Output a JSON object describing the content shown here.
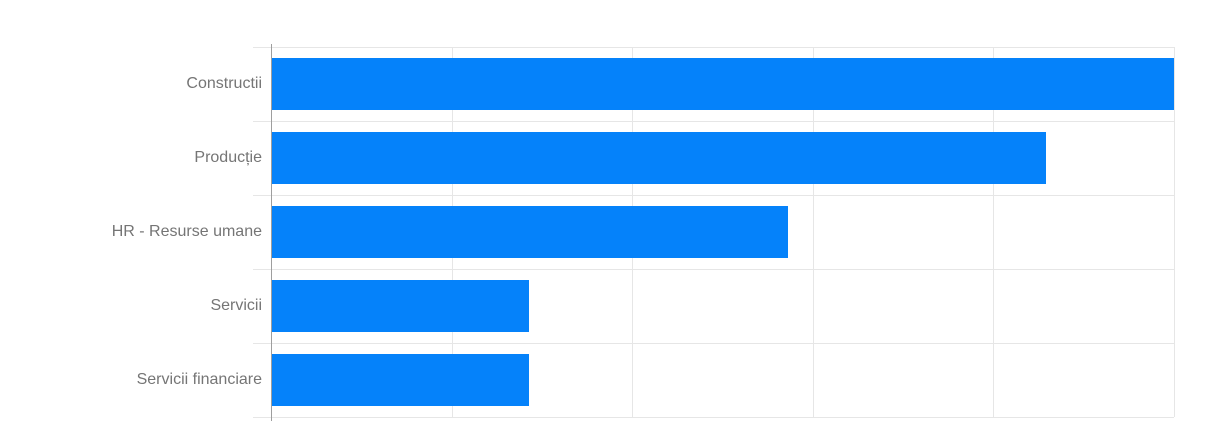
{
  "figure": {
    "background_color": "#ffffff",
    "bar_color": "#0582fa",
    "gridline_color": "#e6e6e6",
    "axis_line_color": "#9e9e9e",
    "label_color": "#757575"
  },
  "chart_data": {
    "type": "bar",
    "orientation": "horizontal",
    "title": "",
    "xlabel": "",
    "ylabel": "",
    "categories": [
      "Constructii",
      "Producție",
      "HR - Resurse umane",
      "Servicii",
      "Servicii financiare"
    ],
    "values": [
      5.0,
      4.29,
      2.86,
      1.43,
      1.43
    ],
    "value_units": "gridline intervals (no numeric axis tick labels visible; bar ratio 7:6:4:2:2)",
    "xlim": [
      0,
      5
    ],
    "x_gridline_step": 1,
    "grid": true,
    "legend": "none"
  }
}
